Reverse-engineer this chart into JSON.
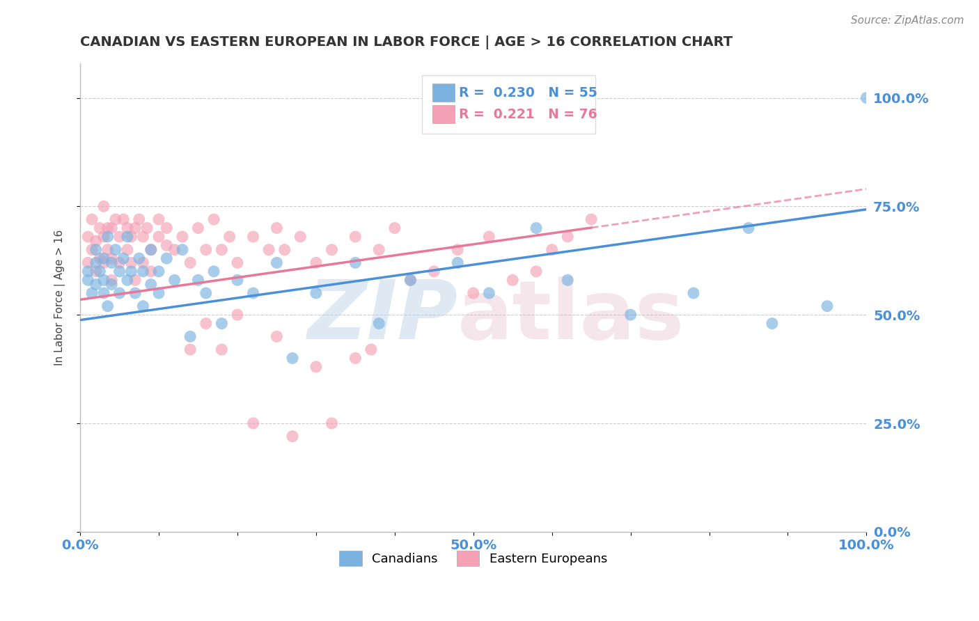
{
  "title": "CANADIAN VS EASTERN EUROPEAN IN LABOR FORCE | AGE > 16 CORRELATION CHART",
  "source_text": "Source: ZipAtlas.com",
  "ylabel": "In Labor Force | Age > 16",
  "blue_R": 0.23,
  "blue_N": 55,
  "pink_R": 0.221,
  "pink_N": 76,
  "blue_color": "#4a90d9",
  "pink_color": "#e8789a",
  "blue_scatter_color": "#7ab3e0",
  "pink_scatter_color": "#f4a0b5",
  "title_color": "#333333",
  "source_color": "#888888",
  "axis_label_color": "#4a90d9",
  "legend_r_color": "#4a90d9",
  "legend_r2_color": "#e8789a",
  "xlim": [
    0,
    1
  ],
  "ylim": [
    0.0,
    1.08
  ],
  "blue_line_slope": 0.255,
  "pink_line_slope": 0.255,
  "blue_line_intercept": 0.488,
  "pink_line_intercept": 0.535,
  "pink_line_solid_end": 0.65,
  "blue_points_x": [
    0.01,
    0.01,
    0.015,
    0.02,
    0.02,
    0.02,
    0.025,
    0.03,
    0.03,
    0.03,
    0.035,
    0.035,
    0.04,
    0.04,
    0.045,
    0.05,
    0.05,
    0.055,
    0.06,
    0.06,
    0.065,
    0.07,
    0.075,
    0.08,
    0.08,
    0.09,
    0.09,
    0.1,
    0.1,
    0.11,
    0.12,
    0.13,
    0.14,
    0.15,
    0.16,
    0.17,
    0.18,
    0.2,
    0.22,
    0.25,
    0.27,
    0.3,
    0.35,
    0.38,
    0.42,
    0.48,
    0.52,
    0.58,
    0.62,
    0.7,
    0.78,
    0.85,
    0.88,
    0.95,
    1.0
  ],
  "blue_points_y": [
    0.6,
    0.58,
    0.55,
    0.62,
    0.57,
    0.65,
    0.6,
    0.58,
    0.63,
    0.55,
    0.68,
    0.52,
    0.62,
    0.57,
    0.65,
    0.6,
    0.55,
    0.63,
    0.58,
    0.68,
    0.6,
    0.55,
    0.63,
    0.6,
    0.52,
    0.57,
    0.65,
    0.6,
    0.55,
    0.63,
    0.58,
    0.65,
    0.45,
    0.58,
    0.55,
    0.6,
    0.48,
    0.58,
    0.55,
    0.62,
    0.4,
    0.55,
    0.62,
    0.48,
    0.58,
    0.62,
    0.55,
    0.7,
    0.58,
    0.5,
    0.55,
    0.7,
    0.48,
    0.52,
    1.0
  ],
  "pink_points_x": [
    0.01,
    0.01,
    0.015,
    0.015,
    0.02,
    0.02,
    0.025,
    0.025,
    0.03,
    0.03,
    0.03,
    0.035,
    0.035,
    0.04,
    0.04,
    0.04,
    0.045,
    0.05,
    0.05,
    0.055,
    0.06,
    0.06,
    0.065,
    0.065,
    0.07,
    0.07,
    0.075,
    0.08,
    0.08,
    0.085,
    0.09,
    0.09,
    0.1,
    0.1,
    0.11,
    0.11,
    0.12,
    0.13,
    0.14,
    0.15,
    0.16,
    0.17,
    0.18,
    0.19,
    0.2,
    0.22,
    0.24,
    0.25,
    0.26,
    0.28,
    0.3,
    0.32,
    0.35,
    0.38,
    0.4,
    0.42,
    0.45,
    0.48,
    0.5,
    0.52,
    0.55,
    0.58,
    0.6,
    0.62,
    0.65,
    0.35,
    0.3,
    0.25,
    0.2,
    0.18,
    0.16,
    0.14,
    0.22,
    0.27,
    0.32,
    0.37
  ],
  "pink_points_y": [
    0.62,
    0.68,
    0.65,
    0.72,
    0.6,
    0.67,
    0.63,
    0.7,
    0.68,
    0.62,
    0.75,
    0.7,
    0.65,
    0.63,
    0.7,
    0.58,
    0.72,
    0.68,
    0.62,
    0.72,
    0.7,
    0.65,
    0.68,
    0.62,
    0.7,
    0.58,
    0.72,
    0.68,
    0.62,
    0.7,
    0.65,
    0.6,
    0.68,
    0.72,
    0.66,
    0.7,
    0.65,
    0.68,
    0.62,
    0.7,
    0.65,
    0.72,
    0.65,
    0.68,
    0.62,
    0.68,
    0.65,
    0.7,
    0.65,
    0.68,
    0.62,
    0.65,
    0.68,
    0.65,
    0.7,
    0.58,
    0.6,
    0.65,
    0.55,
    0.68,
    0.58,
    0.6,
    0.65,
    0.68,
    0.72,
    0.4,
    0.38,
    0.45,
    0.5,
    0.42,
    0.48,
    0.42,
    0.25,
    0.22,
    0.25,
    0.42
  ],
  "y_tick_labels": [
    "0.0%",
    "25.0%",
    "50.0%",
    "75.0%",
    "100.0%"
  ],
  "y_tick_vals": [
    0.0,
    0.25,
    0.5,
    0.75,
    1.0
  ],
  "x_tick_labels": [
    "0.0%",
    "",
    "",
    "",
    "",
    "50.0%",
    "",
    "",
    "",
    "",
    "100.0%"
  ],
  "x_tick_vals": [
    0.0,
    0.1,
    0.2,
    0.3,
    0.4,
    0.5,
    0.6,
    0.7,
    0.8,
    0.9,
    1.0
  ]
}
